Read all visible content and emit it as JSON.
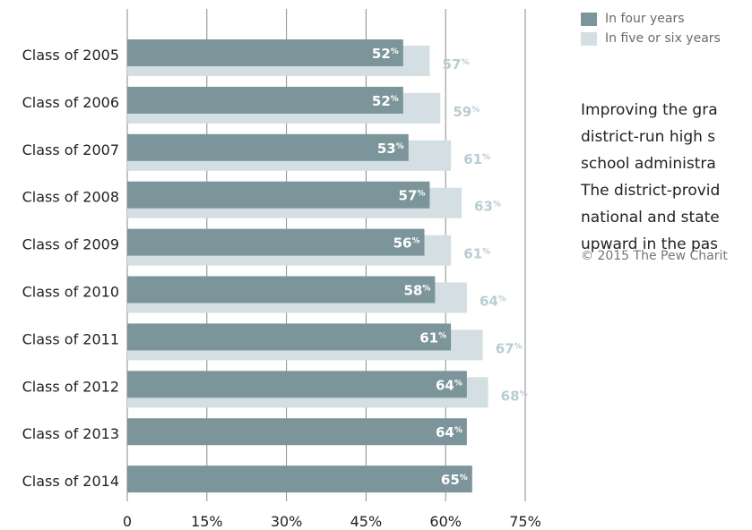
{
  "chart_data": {
    "type": "bar",
    "orientation": "horizontal",
    "categories": [
      "Class of 2005",
      "Class of 2006",
      "Class of 2007",
      "Class of 2008",
      "Class of 2009",
      "Class of 2010",
      "Class of 2011",
      "Class of 2012",
      "Class of 2013",
      "Class of 2014"
    ],
    "series": [
      {
        "name": "In four years",
        "values": [
          52,
          52,
          53,
          57,
          56,
          58,
          61,
          64,
          64,
          65
        ],
        "color": "#7b959b"
      },
      {
        "name": "In five or six years",
        "values": [
          57,
          59,
          61,
          63,
          61,
          64,
          67,
          68,
          null,
          null
        ],
        "color": "#d3dfe2"
      }
    ],
    "value_suffix": "%",
    "xlim": [
      0,
      75
    ],
    "xticks": [
      0,
      15,
      30,
      45,
      60,
      75
    ],
    "xtick_labels": [
      "0",
      "15%",
      "30%",
      "45%",
      "60%",
      "75%"
    ],
    "grid": true,
    "legend": "top-right",
    "label_colors": {
      "four": "#ffffff",
      "five": "#b8cdd2"
    }
  },
  "note_lines": [
    "Improving the gra",
    "district-run high s",
    "school administra",
    "The district-provid",
    "national and state",
    "upward in the pas"
  ],
  "copyright": "© 2015 The Pew Charit"
}
